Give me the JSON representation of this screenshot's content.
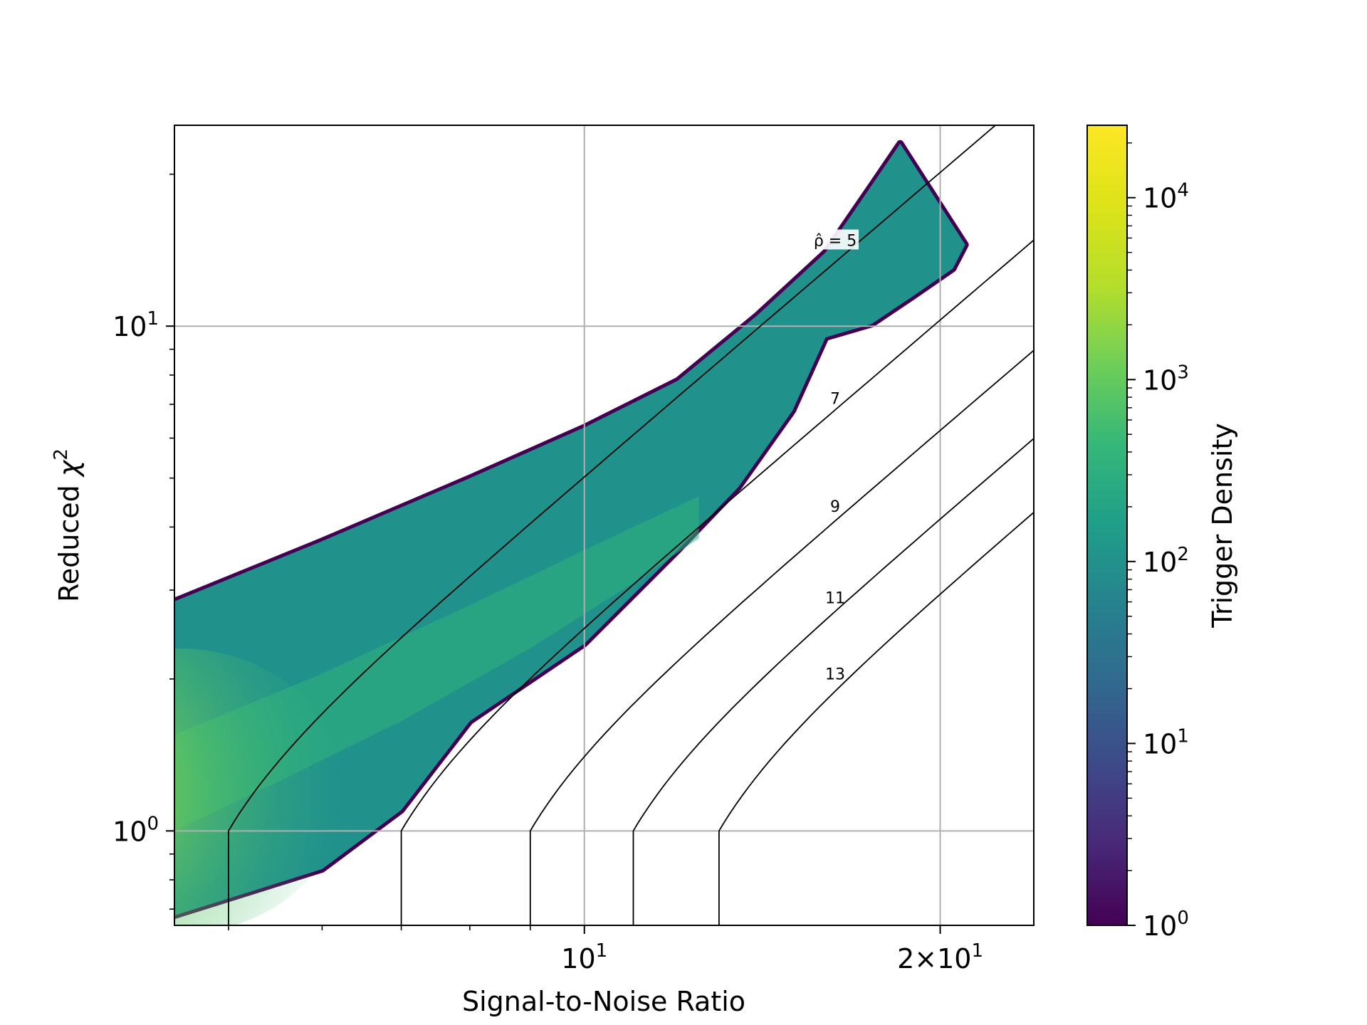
{
  "chart_data": {
    "type": "heatmap",
    "subtype": "hexbin",
    "title": "",
    "xlabel": "Signal-to-Noise Ratio",
    "ylabel_text": "Reduced",
    "ylabel_symbol": "χ",
    "ylabel_sup": "2",
    "xscale": "log",
    "yscale": "log",
    "xlim": [
      4.5,
      24
    ],
    "ylim": [
      0.65,
      25
    ],
    "grid": true,
    "x_major_ticks": [
      {
        "value": 10,
        "base": "10",
        "exp": "1"
      },
      {
        "value": 20,
        "base": "2×10",
        "exp": "1"
      }
    ],
    "x_minor_ticks": [
      5,
      6,
      7,
      8,
      9
    ],
    "y_major_ticks": [
      {
        "value": 1,
        "base": "10",
        "exp": "0"
      },
      {
        "value": 10,
        "base": "10",
        "exp": "1"
      }
    ],
    "y_minor_ticks": [
      0.7,
      0.8,
      0.9,
      2,
      3,
      4,
      5,
      6,
      7,
      8,
      9,
      20
    ],
    "colorbar": {
      "label": "Trigger Density",
      "scale": "log",
      "colormap": "viridis",
      "range": [
        1,
        25000
      ],
      "ticks": [
        {
          "value": 1,
          "base": "10",
          "exp": "0"
        },
        {
          "value": 10,
          "base": "10",
          "exp": "1"
        },
        {
          "value": 100,
          "base": "10",
          "exp": "2"
        },
        {
          "value": 1000,
          "base": "10",
          "exp": "3"
        },
        {
          "value": 10000,
          "base": "10",
          "exp": "4"
        }
      ]
    },
    "density_region": {
      "upper_edge": [
        [
          4.5,
          2.85
        ],
        [
          6,
          3.75
        ],
        [
          8,
          5.0
        ],
        [
          10,
          6.3
        ],
        [
          12,
          7.8
        ],
        [
          14,
          10.5
        ],
        [
          16,
          14
        ],
        [
          17.5,
          19
        ],
        [
          18.5,
          23
        ]
      ],
      "lower_edge": [
        [
          4.5,
          0.68
        ],
        [
          6,
          0.84
        ],
        [
          7,
          1.1
        ],
        [
          8,
          1.65
        ],
        [
          10,
          2.35
        ],
        [
          12,
          3.6
        ],
        [
          13.5,
          4.8
        ],
        [
          15,
          6.8
        ],
        [
          16,
          9.5
        ],
        [
          17.5,
          10.1
        ],
        [
          19,
          11.5
        ],
        [
          20.5,
          13.0
        ],
        [
          21,
          14.5
        ],
        [
          18.5,
          23
        ]
      ],
      "peak": {
        "x": 4.55,
        "y": 1.2,
        "density": 25000
      }
    },
    "contours": [
      {
        "label": "ρ̂ = 5",
        "rho": 5,
        "label_pos": [
          16.3,
          14.8
        ]
      },
      {
        "label": "7",
        "rho": 7,
        "label_pos": [
          16.3,
          7.2
        ]
      },
      {
        "label": "9",
        "rho": 9,
        "label_pos": [
          16.3,
          4.4
        ]
      },
      {
        "label": "11",
        "rho": 11,
        "label_pos": [
          16.3,
          2.9
        ]
      },
      {
        "label": "13",
        "rho": 13,
        "label_pos": [
          16.3,
          2.05
        ]
      }
    ]
  }
}
